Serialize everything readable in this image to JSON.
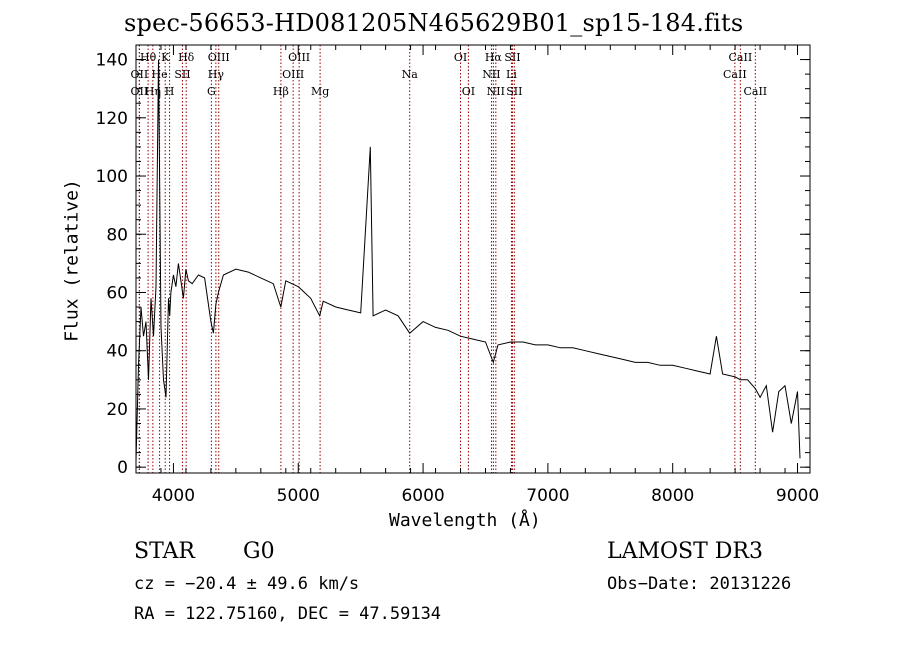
{
  "chart_data": {
    "type": "line",
    "title": "spec-56653-HD081205N465629B01_sp15-184.fits",
    "xlabel": "Wavelength (Å)",
    "ylabel": "Flux (relative)",
    "xlim": [
      3700,
      9100
    ],
    "ylim": [
      -2,
      145
    ],
    "xticks": [
      4000,
      5000,
      6000,
      7000,
      8000,
      9000
    ],
    "yticks": [
      0,
      20,
      40,
      60,
      80,
      100,
      120,
      140
    ],
    "series": [
      {
        "name": "flux",
        "x": [
          3700,
          3720,
          3740,
          3760,
          3780,
          3800,
          3820,
          3840,
          3860,
          3880,
          3900,
          3920,
          3940,
          3960,
          3970,
          3980,
          4000,
          4020,
          4040,
          4060,
          4080,
          4100,
          4120,
          4150,
          4200,
          4250,
          4300,
          4320,
          4340,
          4360,
          4400,
          4500,
          4600,
          4700,
          4800,
          4860,
          4900,
          5000,
          5100,
          5172,
          5200,
          5300,
          5400,
          5500,
          5577,
          5600,
          5700,
          5800,
          5893,
          6000,
          6100,
          6200,
          6300,
          6400,
          6500,
          6563,
          6600,
          6700,
          6800,
          6900,
          7000,
          7100,
          7200,
          7300,
          7400,
          7500,
          7600,
          7700,
          7800,
          7900,
          8000,
          8100,
          8200,
          8300,
          8350,
          8400,
          8500,
          8542,
          8600,
          8662,
          8700,
          8750,
          8800,
          8850,
          8900,
          8950,
          9000,
          9020
        ],
        "y": [
          2,
          35,
          55,
          45,
          50,
          30,
          58,
          45,
          62,
          140,
          48,
          30,
          24,
          58,
          52,
          60,
          66,
          62,
          70,
          64,
          58,
          68,
          64,
          63,
          66,
          65,
          50,
          46,
          56,
          60,
          66,
          68,
          67,
          65,
          63,
          55,
          64,
          62,
          58,
          52,
          57,
          55,
          54,
          53,
          110,
          52,
          54,
          52,
          46,
          50,
          48,
          47,
          45,
          44,
          43,
          36,
          42,
          43,
          43,
          42,
          42,
          41,
          41,
          40,
          39,
          38,
          37,
          36,
          36,
          35,
          35,
          34,
          33,
          32,
          45,
          32,
          31,
          30,
          30,
          27,
          24,
          28,
          12,
          26,
          28,
          15,
          26,
          3
        ]
      }
    ],
    "lines": [
      {
        "label": "OII",
        "wl": 3727,
        "row": 2
      },
      {
        "label": "OII",
        "wl": 3727,
        "row": 3
      },
      {
        "label": "Hθ",
        "wl": 3797,
        "row": 1
      },
      {
        "label": "Hη",
        "wl": 3835,
        "row": 3
      },
      {
        "label": "He",
        "wl": 3889,
        "row": 2
      },
      {
        "label": "K",
        "wl": 3934,
        "row": 1
      },
      {
        "label": "H",
        "wl": 3969,
        "row": 3
      },
      {
        "label": "Hδ",
        "wl": 4102,
        "row": 1
      },
      {
        "label": "SII",
        "wl": 4072,
        "row": 2
      },
      {
        "label": "OIII",
        "wl": 4363,
        "row": 1
      },
      {
        "label": "Hγ",
        "wl": 4340,
        "row": 2
      },
      {
        "label": "G",
        "wl": 4304,
        "row": 3
      },
      {
        "label": "Hβ",
        "wl": 4861,
        "row": 3
      },
      {
        "label": "OIII",
        "wl": 5007,
        "row": 1
      },
      {
        "label": "OIII",
        "wl": 4959,
        "row": 2
      },
      {
        "label": "Mg",
        "wl": 5175,
        "row": 3
      },
      {
        "label": "Na",
        "wl": 5893,
        "row": 2
      },
      {
        "label": "OI",
        "wl": 6300,
        "row": 1
      },
      {
        "label": "OI",
        "wl": 6363,
        "row": 3
      },
      {
        "label": "Hα",
        "wl": 6563,
        "row": 1
      },
      {
        "label": "NII",
        "wl": 6548,
        "row": 2
      },
      {
        "label": "NII",
        "wl": 6583,
        "row": 3
      },
      {
        "label": "SII",
        "wl": 6716,
        "row": 1
      },
      {
        "label": "Li",
        "wl": 6708,
        "row": 2
      },
      {
        "label": "SII",
        "wl": 6731,
        "row": 3
      },
      {
        "label": "CaII",
        "wl": 8542,
        "row": 1
      },
      {
        "label": "CaII",
        "wl": 8498,
        "row": 2
      },
      {
        "label": "CaII",
        "wl": 8662,
        "row": 3
      }
    ],
    "line_color": "#990000"
  },
  "info": {
    "class": "STAR",
    "subclass": "G0",
    "survey": "LAMOST DR3",
    "cz": "cz = −20.4 ± 49.6 km/s",
    "obsdate": "Obs−Date: 20131226",
    "coords": "RA = 122.75160, DEC =  47.59134"
  }
}
